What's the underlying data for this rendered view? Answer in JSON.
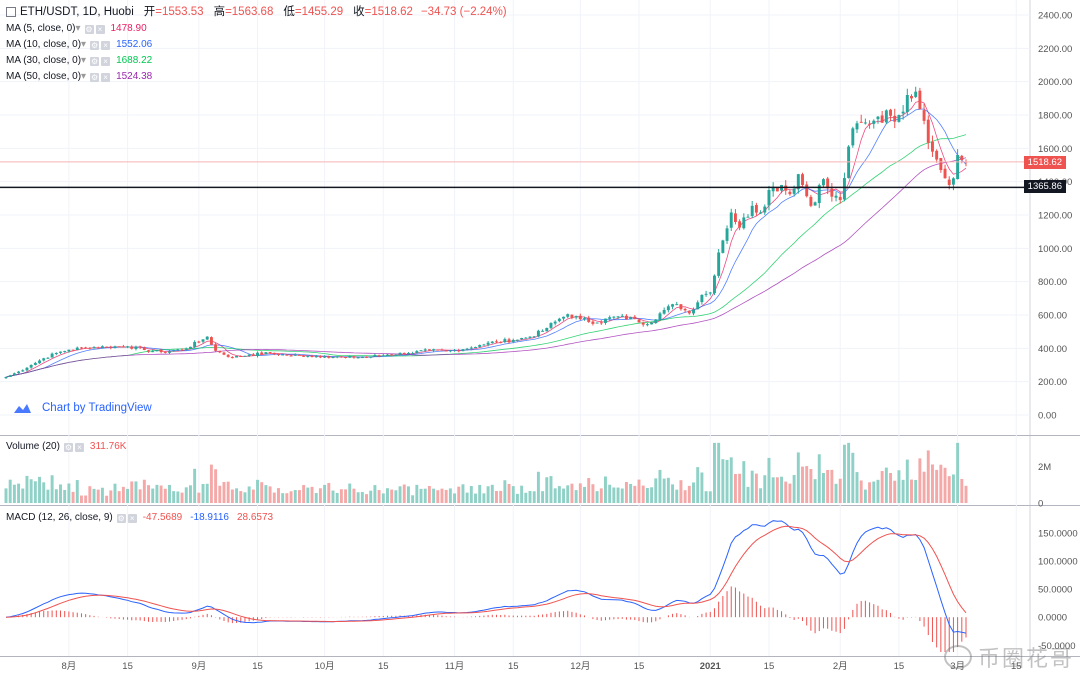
{
  "header": {
    "symbol": "ETH/USDT, 1D, Huobi",
    "open_label": "开",
    "open_value": "=1553.53",
    "high_label": "高",
    "high_value": "=1563.68",
    "low_label": "低",
    "low_value": "=1455.29",
    "close_label": "收",
    "close_value": "=1518.62",
    "change": "−34.73 (−2.24%)"
  },
  "indicators": [
    {
      "label": "MA (5, close, 0)",
      "value": "1478.90",
      "color": "#e91e63"
    },
    {
      "label": "MA (10, close, 0)",
      "value": "1552.06",
      "color": "#2962ff"
    },
    {
      "label": "MA (30, close, 0)",
      "value": "1688.22",
      "color": "#00c853"
    },
    {
      "label": "MA (50, close, 0)",
      "value": "1524.38",
      "color": "#9c27b0"
    }
  ],
  "volume_legend": {
    "label": "Volume (20)",
    "value": "311.76K"
  },
  "macd_legend": {
    "label": "MACD (12, 26, close, 9)",
    "v1": "-47.5689",
    "v2": "-18.9116",
    "v3": "28.6573"
  },
  "brand": "Chart by TradingView",
  "badges": {
    "last_price": "1518.62",
    "level": "1365.86"
  },
  "watermark": "币圈花哥",
  "colors": {
    "up": "#26a69a",
    "down": "#ef5350",
    "up_volume": "#8fd1c6",
    "down_volume": "#f4a9a8",
    "grid": "#f0f3fa"
  },
  "chart_data": {
    "type": "candlestick",
    "title": "ETH/USDT, 1D, Huobi",
    "ylim": [
      -100,
      2460
    ],
    "price_ticks": [
      "2400.00",
      "2200.00",
      "2000.00",
      "1800.00",
      "1600.00",
      "1400.00",
      "1200.00",
      "1000.00",
      "800.00",
      "600.00",
      "400.00",
      "200.00",
      "0.00"
    ],
    "price_tick_values": [
      2400,
      2200,
      2000,
      1800,
      1600,
      1400,
      1200,
      1000,
      800,
      600,
      400,
      200,
      0
    ],
    "x_ticks": [
      "8月",
      "15",
      "9月",
      "15",
      "10月",
      "15",
      "11月",
      "15",
      "12月",
      "15",
      "2021",
      "15",
      "2月",
      "15",
      "3月",
      "15"
    ],
    "x_tick_days": [
      0,
      14,
      31,
      45,
      61,
      75,
      92,
      106,
      122,
      136,
      153,
      167,
      184,
      198,
      212,
      226
    ],
    "start_day": -15,
    "end_day": 214,
    "anchors": [
      [
        -15,
        228
      ],
      [
        -12,
        260
      ],
      [
        -9,
        300
      ],
      [
        -6,
        340
      ],
      [
        -3,
        372
      ],
      [
        0,
        392
      ],
      [
        4,
        405
      ],
      [
        9,
        410
      ],
      [
        14,
        412
      ],
      [
        18,
        390
      ],
      [
        22,
        378
      ],
      [
        27,
        392
      ],
      [
        31,
        440
      ],
      [
        33,
        470
      ],
      [
        35,
        385
      ],
      [
        39,
        345
      ],
      [
        43,
        362
      ],
      [
        48,
        372
      ],
      [
        52,
        358
      ],
      [
        57,
        355
      ],
      [
        61,
        352
      ],
      [
        66,
        346
      ],
      [
        71,
        348
      ],
      [
        76,
        362
      ],
      [
        81,
        372
      ],
      [
        86,
        388
      ],
      [
        90,
        382
      ],
      [
        94,
        395
      ],
      [
        98,
        420
      ],
      [
        102,
        440
      ],
      [
        106,
        450
      ],
      [
        110,
        470
      ],
      [
        113,
        505
      ],
      [
        116,
        560
      ],
      [
        119,
        605
      ],
      [
        122,
        575
      ],
      [
        126,
        555
      ],
      [
        130,
        590
      ],
      [
        135,
        575
      ],
      [
        138,
        545
      ],
      [
        142,
        630
      ],
      [
        145,
        665
      ],
      [
        148,
        610
      ],
      [
        151,
        720
      ],
      [
        153,
        735
      ],
      [
        155,
        975
      ],
      [
        158,
        1215
      ],
      [
        160,
        1125
      ],
      [
        163,
        1255
      ],
      [
        165,
        1215
      ],
      [
        167,
        1350
      ],
      [
        170,
        1380
      ],
      [
        172,
        1325
      ],
      [
        174,
        1445
      ],
      [
        177,
        1255
      ],
      [
        180,
        1415
      ],
      [
        182,
        1310
      ],
      [
        184,
        1290
      ],
      [
        187,
        1720
      ],
      [
        190,
        1755
      ],
      [
        193,
        1790
      ],
      [
        196,
        1795
      ],
      [
        198,
        1800
      ],
      [
        200,
        1920
      ],
      [
        202,
        1940
      ],
      [
        204,
        1765
      ],
      [
        206,
        1580
      ],
      [
        208,
        1470
      ],
      [
        210,
        1380
      ],
      [
        211,
        1420
      ],
      [
        212,
        1560
      ],
      [
        214,
        1518.62
      ]
    ],
    "ma_periods": [
      5,
      10,
      30,
      50
    ],
    "horizontal_level": 1365.86,
    "last_price": 1518.62,
    "volume": {
      "ylim": [
        0,
        3400000
      ],
      "ticks": [
        "2M",
        "0"
      ],
      "tick_values": [
        2000000,
        0
      ]
    },
    "macd": {
      "fast": 12,
      "slow": 26,
      "signal": 9,
      "ticks": [
        "150.0000",
        "100.0000",
        "50.0000",
        "0.0000",
        "-50.0000"
      ],
      "tick_values": [
        150,
        100,
        50,
        0,
        -50
      ],
      "ylim": [
        -62,
        182
      ]
    }
  }
}
